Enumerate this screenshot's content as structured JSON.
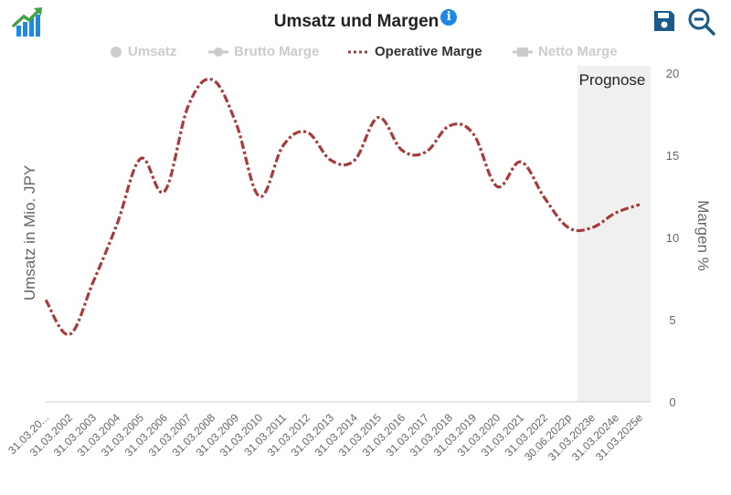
{
  "header": {
    "title": "Umsatz und Margen",
    "info_icon": "info-icon",
    "logo_icon": "growth-chart-icon",
    "save_icon": "save-icon",
    "zoom_icon": "zoom-out-icon"
  },
  "legend": {
    "items": [
      {
        "label": "Umsatz",
        "symbol": "circle",
        "active": false
      },
      {
        "label": "Brutto Marge",
        "symbol": "line-circle",
        "active": false
      },
      {
        "label": "Operative Marge",
        "symbol": "dotted-line",
        "active": true
      },
      {
        "label": "Netto Marge",
        "symbol": "line-square",
        "active": false
      }
    ]
  },
  "forecast_label": "Prognose",
  "colors": {
    "operative": "#a83a3a",
    "inactive": "#cccccc",
    "forecast_band": "#f0f0f0",
    "accent": "#1e88e5",
    "save": "#1a5a8a"
  },
  "chart_data": {
    "type": "line",
    "title": "Umsatz und Margen",
    "ylabel_left": "Umsatz in Mio. JPY",
    "ylabel_right": "Margen %",
    "yticks_right": [
      "0",
      "5",
      "10",
      "15",
      "20"
    ],
    "ylim": [
      0,
      20
    ],
    "forecast_from_index": 23,
    "categories": [
      "31.03.20...",
      "31.03.2002",
      "31.03.2003",
      "31.03.2004",
      "31.03.2005",
      "31.03.2006",
      "31.03.2007",
      "31.03.2008",
      "31.03.2009",
      "31.03.2010",
      "31.03.2011",
      "31.03.2012",
      "31.03.2013",
      "31.03.2014",
      "31.03.2015",
      "31.03.2016",
      "31.03.2017",
      "31.03.2018",
      "31.03.2019",
      "31.03.2020",
      "31.03.2021",
      "31.03.2022",
      "30.06.2022p",
      "31.03.2023e",
      "31.03.2024e",
      "31.03.2025e"
    ],
    "series": [
      {
        "name": "Operative Marge",
        "values": [
          6.2,
          4.1,
          7.3,
          10.8,
          14.8,
          12.8,
          18.0,
          19.6,
          17.0,
          12.5,
          15.6,
          16.4,
          14.7,
          14.7,
          17.3,
          15.3,
          15.2,
          16.8,
          16.3,
          13.1,
          14.6,
          12.4,
          10.6,
          10.6,
          11.5,
          12.0
        ]
      }
    ]
  }
}
